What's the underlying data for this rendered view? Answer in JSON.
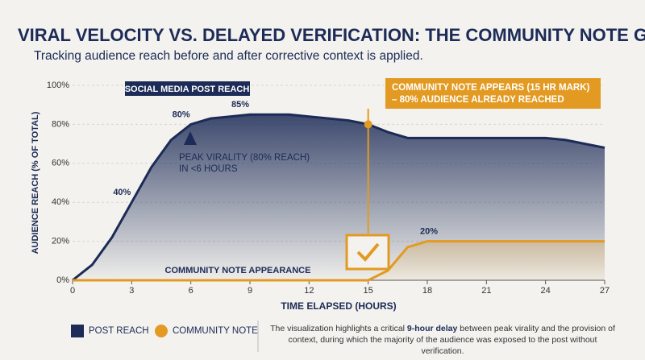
{
  "chart_data": {
    "type": "line",
    "title": "VIRAL VELOCITY VS. DELAYED VERIFICATION: THE COMMUNITY NOTE GAP",
    "subtitle": "Tracking audience reach before and after corrective context is applied.",
    "x_label": "TIME ELAPSED (HOURS)",
    "y_label": "AUDIENCE REACH (% OF TOTAL)",
    "x": [
      0,
      1,
      2,
      3,
      4,
      5,
      6,
      7,
      8,
      9,
      10,
      11,
      12,
      13,
      14,
      15,
      16,
      17,
      18,
      19,
      20,
      21,
      22,
      23,
      24,
      25,
      26,
      27
    ],
    "series": [
      {
        "name": "POST REACH",
        "color": "#1c2b57",
        "area": true,
        "values": [
          0,
          8,
          22,
          40,
          58,
          72,
          80,
          83,
          84,
          85,
          85,
          85,
          84,
          83,
          82,
          80,
          76,
          73,
          73,
          73,
          73,
          73,
          73,
          73,
          73,
          72,
          70,
          68
        ],
        "value_labels": [
          null,
          null,
          null,
          "40%",
          null,
          null,
          "80%",
          null,
          null,
          "85%",
          null,
          null,
          null,
          null,
          null,
          null,
          null,
          null,
          null,
          null,
          null,
          null,
          null,
          null,
          null,
          null,
          null,
          null
        ]
      },
      {
        "name": "COMMUNITY NOTE",
        "color": "#e39a22",
        "area": true,
        "values": [
          0,
          0,
          0,
          0,
          0,
          0,
          0,
          0,
          0,
          0,
          0,
          0,
          0,
          0,
          0,
          0,
          5,
          17,
          20,
          20,
          20,
          20,
          20,
          20,
          20,
          20,
          20,
          20
        ],
        "value_labels": [
          null,
          null,
          null,
          null,
          null,
          null,
          null,
          null,
          null,
          null,
          null,
          null,
          null,
          null,
          null,
          null,
          null,
          null,
          "20%",
          null,
          null,
          null,
          null,
          null,
          null,
          null,
          null,
          null
        ]
      }
    ],
    "xlim": [
      0,
      27
    ],
    "ylim": [
      0,
      100
    ],
    "xticks": [
      0,
      3,
      6,
      9,
      12,
      15,
      18,
      21,
      24,
      27
    ],
    "yticks": [
      {
        "value": 0,
        "label": "0%"
      },
      {
        "value": 20,
        "label": "20%"
      },
      {
        "value": 40,
        "label": "40%"
      },
      {
        "value": 60,
        "label": "60%"
      },
      {
        "value": 80,
        "label": "80%"
      },
      {
        "value": 100,
        "label": "100%"
      }
    ],
    "annotations": {
      "series_label": "SOCIAL MEDIA POST REACH",
      "note_line": "COMMUNITY NOTE APPEARANCE",
      "event": {
        "x": 15,
        "y": 80,
        "lines": [
          "COMMUNITY NOTE APPEARS (15 HR MARK)",
          "– 80% AUDIENCE ALREADY REACHED"
        ]
      },
      "peak": [
        "PEAK VIRALITY (80% REACH)",
        "IN <6 HOURS"
      ]
    },
    "description": {
      "before": "The visualization highlights a critical ",
      "bold": "9-hour delay",
      "after": " between peak virality and the provision of context, during which the majority of the audience was exposed to the post without verification."
    }
  }
}
